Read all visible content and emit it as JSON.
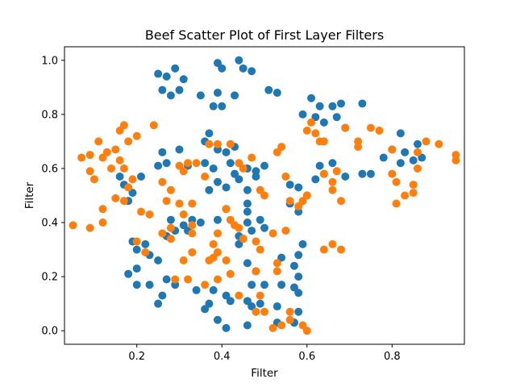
{
  "chart_data": {
    "type": "scatter",
    "title": "Beef Scatter Plot of First Layer Filters",
    "xlabel": "Filter",
    "ylabel": "Filter",
    "xlim": [
      0.03,
      0.97
    ],
    "ylim": [
      -0.05,
      1.05
    ],
    "x_ticks": [
      0.2,
      0.4,
      0.6,
      0.8
    ],
    "y_ticks": [
      0.0,
      0.2,
      0.4,
      0.6,
      0.8,
      1.0
    ],
    "x_tick_labels": [
      "0.2",
      "0.4",
      "0.6",
      "0.8"
    ],
    "y_tick_labels": [
      "0.0",
      "0.2",
      "0.4",
      "0.6",
      "0.8",
      "1.0"
    ],
    "grid": false,
    "series": [
      {
        "color": "#1f77b4",
        "points": [
          [
            0.25,
            0.95
          ],
          [
            0.27,
            0.94
          ],
          [
            0.29,
            0.97
          ],
          [
            0.31,
            0.93
          ],
          [
            0.26,
            0.89
          ],
          [
            0.28,
            0.87
          ],
          [
            0.3,
            0.89
          ],
          [
            0.39,
            0.99
          ],
          [
            0.4,
            0.97
          ],
          [
            0.44,
            1.0
          ],
          [
            0.45,
            0.97
          ],
          [
            0.47,
            0.96
          ],
          [
            0.35,
            0.87
          ],
          [
            0.38,
            0.83
          ],
          [
            0.39,
            0.88
          ],
          [
            0.4,
            0.83
          ],
          [
            0.43,
            0.87
          ],
          [
            0.51,
            0.89
          ],
          [
            0.53,
            0.88
          ],
          [
            0.61,
            0.86
          ],
          [
            0.63,
            0.83
          ],
          [
            0.66,
            0.83
          ],
          [
            0.68,
            0.84
          ],
          [
            0.73,
            0.84
          ],
          [
            0.59,
            0.8
          ],
          [
            0.62,
            0.79
          ],
          [
            0.64,
            0.77
          ],
          [
            0.67,
            0.79
          ],
          [
            0.69,
            0.75
          ],
          [
            0.37,
            0.73
          ],
          [
            0.36,
            0.7
          ],
          [
            0.39,
            0.67
          ],
          [
            0.41,
            0.66
          ],
          [
            0.43,
            0.68
          ],
          [
            0.26,
            0.66
          ],
          [
            0.3,
            0.67
          ],
          [
            0.25,
            0.61
          ],
          [
            0.27,
            0.62
          ],
          [
            0.32,
            0.61
          ],
          [
            0.36,
            0.62
          ],
          [
            0.38,
            0.6
          ],
          [
            0.42,
            0.62
          ],
          [
            0.43,
            0.58
          ],
          [
            0.46,
            0.6
          ],
          [
            0.48,
            0.59
          ],
          [
            0.5,
            0.61
          ],
          [
            0.37,
            0.52
          ],
          [
            0.39,
            0.55
          ],
          [
            0.41,
            0.53
          ],
          [
            0.46,
            0.52
          ],
          [
            0.48,
            0.57
          ],
          [
            0.44,
            0.56
          ],
          [
            0.16,
            0.57
          ],
          [
            0.17,
            0.54
          ],
          [
            0.19,
            0.51
          ],
          [
            0.18,
            0.48
          ],
          [
            0.21,
            0.57
          ],
          [
            0.56,
            0.54
          ],
          [
            0.58,
            0.53
          ],
          [
            0.62,
            0.56
          ],
          [
            0.63,
            0.61
          ],
          [
            0.66,
            0.62
          ],
          [
            0.64,
            0.58
          ],
          [
            0.69,
            0.57
          ],
          [
            0.73,
            0.58
          ],
          [
            0.75,
            0.58
          ],
          [
            0.78,
            0.64
          ],
          [
            0.8,
            0.67
          ],
          [
            0.82,
            0.62
          ],
          [
            0.83,
            0.66
          ],
          [
            0.85,
            0.63
          ],
          [
            0.86,
            0.69
          ],
          [
            0.87,
            0.64
          ],
          [
            0.82,
            0.73
          ],
          [
            0.56,
            0.47
          ],
          [
            0.58,
            0.44
          ],
          [
            0.6,
            0.5
          ],
          [
            0.28,
            0.41
          ],
          [
            0.29,
            0.37
          ],
          [
            0.27,
            0.35
          ],
          [
            0.31,
            0.39
          ],
          [
            0.33,
            0.41
          ],
          [
            0.35,
            0.4
          ],
          [
            0.32,
            0.37
          ],
          [
            0.39,
            0.41
          ],
          [
            0.41,
            0.45
          ],
          [
            0.44,
            0.35
          ],
          [
            0.46,
            0.4
          ],
          [
            0.47,
            0.37
          ],
          [
            0.46,
            0.44
          ],
          [
            0.46,
            0.47
          ],
          [
            0.49,
            0.41
          ],
          [
            0.5,
            0.38
          ],
          [
            0.44,
            0.32
          ],
          [
            0.45,
            0.34
          ],
          [
            0.19,
            0.33
          ],
          [
            0.2,
            0.3
          ],
          [
            0.22,
            0.32
          ],
          [
            0.23,
            0.28
          ],
          [
            0.25,
            0.26
          ],
          [
            0.2,
            0.23
          ],
          [
            0.18,
            0.21
          ],
          [
            0.2,
            0.17
          ],
          [
            0.23,
            0.17
          ],
          [
            0.27,
            0.19
          ],
          [
            0.29,
            0.17
          ],
          [
            0.26,
            0.13
          ],
          [
            0.25,
            0.1
          ],
          [
            0.34,
            0.15
          ],
          [
            0.37,
            0.1
          ],
          [
            0.36,
            0.08
          ],
          [
            0.38,
            0.15
          ],
          [
            0.41,
            0.13
          ],
          [
            0.42,
            0.11
          ],
          [
            0.39,
            0.04
          ],
          [
            0.41,
            0.01
          ],
          [
            0.46,
            0.11
          ],
          [
            0.47,
            0.09
          ],
          [
            0.47,
            0.17
          ],
          [
            0.46,
            0.25
          ],
          [
            0.48,
            0.22
          ],
          [
            0.5,
            0.17
          ],
          [
            0.49,
            0.1
          ],
          [
            0.46,
            0.02
          ],
          [
            0.53,
            0.09
          ],
          [
            0.53,
            0.03
          ],
          [
            0.54,
            0.17
          ],
          [
            0.54,
            0.27
          ],
          [
            0.57,
            0.24
          ],
          [
            0.58,
            0.28
          ],
          [
            0.57,
            0.16
          ],
          [
            0.58,
            0.07
          ],
          [
            0.57,
            0.03
          ],
          [
            0.58,
            0.14
          ],
          [
            0.58,
            0.2
          ],
          [
            0.59,
            0.32
          ],
          [
            0.57,
            0.03
          ]
        ]
      },
      {
        "color": "#ff7f0e",
        "points": [
          [
            0.05,
            0.39
          ],
          [
            0.09,
            0.38
          ],
          [
            0.12,
            0.4
          ],
          [
            0.12,
            0.45
          ],
          [
            0.07,
            0.64
          ],
          [
            0.09,
            0.65
          ],
          [
            0.1,
            0.56
          ],
          [
            0.09,
            0.59
          ],
          [
            0.12,
            0.64
          ],
          [
            0.14,
            0.6
          ],
          [
            0.11,
            0.7
          ],
          [
            0.13,
            0.66
          ],
          [
            0.15,
            0.67
          ],
          [
            0.16,
            0.74
          ],
          [
            0.17,
            0.76
          ],
          [
            0.18,
            0.7
          ],
          [
            0.2,
            0.72
          ],
          [
            0.16,
            0.63
          ],
          [
            0.17,
            0.6
          ],
          [
            0.18,
            0.53
          ],
          [
            0.19,
            0.56
          ],
          [
            0.15,
            0.49
          ],
          [
            0.17,
            0.48
          ],
          [
            0.21,
            0.44
          ],
          [
            0.23,
            0.43
          ],
          [
            0.24,
            0.76
          ],
          [
            0.26,
            0.55
          ],
          [
            0.28,
            0.52
          ],
          [
            0.27,
            0.48
          ],
          [
            0.3,
            0.61
          ],
          [
            0.31,
            0.59
          ],
          [
            0.32,
            0.62
          ],
          [
            0.34,
            0.62
          ],
          [
            0.36,
            0.57
          ],
          [
            0.37,
            0.69
          ],
          [
            0.39,
            0.69
          ],
          [
            0.42,
            0.69
          ],
          [
            0.44,
            0.62
          ],
          [
            0.45,
            0.6
          ],
          [
            0.47,
            0.64
          ],
          [
            0.49,
            0.52
          ],
          [
            0.5,
            0.5
          ],
          [
            0.53,
            0.66
          ],
          [
            0.54,
            0.68
          ],
          [
            0.55,
            0.57
          ],
          [
            0.56,
            0.48
          ],
          [
            0.58,
            0.46
          ],
          [
            0.59,
            0.48
          ],
          [
            0.6,
            0.5
          ],
          [
            0.6,
            0.74
          ],
          [
            0.61,
            0.77
          ],
          [
            0.62,
            0.73
          ],
          [
            0.63,
            0.7
          ],
          [
            0.64,
            0.7
          ],
          [
            0.64,
            0.58
          ],
          [
            0.66,
            0.55
          ],
          [
            0.66,
            0.52
          ],
          [
            0.67,
            0.59
          ],
          [
            0.68,
            0.48
          ],
          [
            0.69,
            0.75
          ],
          [
            0.72,
            0.68
          ],
          [
            0.72,
            0.7
          ],
          [
            0.75,
            0.75
          ],
          [
            0.77,
            0.74
          ],
          [
            0.8,
            0.67
          ],
          [
            0.8,
            0.58
          ],
          [
            0.81,
            0.55
          ],
          [
            0.81,
            0.47
          ],
          [
            0.83,
            0.5
          ],
          [
            0.85,
            0.51
          ],
          [
            0.85,
            0.54
          ],
          [
            0.86,
            0.6
          ],
          [
            0.86,
            0.66
          ],
          [
            0.88,
            0.7
          ],
          [
            0.91,
            0.69
          ],
          [
            0.95,
            0.65
          ],
          [
            0.95,
            0.63
          ],
          [
            0.2,
            0.33
          ],
          [
            0.22,
            0.29
          ],
          [
            0.26,
            0.36
          ],
          [
            0.28,
            0.34
          ],
          [
            0.28,
            0.38
          ],
          [
            0.3,
            0.47
          ],
          [
            0.31,
            0.43
          ],
          [
            0.33,
            0.47
          ],
          [
            0.33,
            0.39
          ],
          [
            0.33,
            0.36
          ],
          [
            0.31,
            0.26
          ],
          [
            0.33,
            0.29
          ],
          [
            0.37,
            0.26
          ],
          [
            0.39,
            0.36
          ],
          [
            0.38,
            0.32
          ],
          [
            0.39,
            0.29
          ],
          [
            0.41,
            0.45
          ],
          [
            0.42,
            0.41
          ],
          [
            0.43,
            0.39
          ],
          [
            0.44,
            0.38
          ],
          [
            0.45,
            0.34
          ],
          [
            0.48,
            0.33
          ],
          [
            0.49,
            0.3
          ],
          [
            0.48,
            0.22
          ],
          [
            0.52,
            0.36
          ],
          [
            0.53,
            0.25
          ],
          [
            0.53,
            0.22
          ],
          [
            0.55,
            0.37
          ],
          [
            0.29,
            0.19
          ],
          [
            0.32,
            0.19
          ],
          [
            0.36,
            0.17
          ],
          [
            0.39,
            0.19
          ],
          [
            0.42,
            0.21
          ],
          [
            0.44,
            0.13
          ],
          [
            0.48,
            0.07
          ],
          [
            0.49,
            0.13
          ],
          [
            0.5,
            0.07
          ],
          [
            0.52,
            0.01
          ],
          [
            0.54,
            0.02
          ],
          [
            0.56,
            0.07
          ],
          [
            0.56,
            0.04
          ],
          [
            0.59,
            0.02
          ],
          [
            0.6,
            0.0
          ],
          [
            0.64,
            0.3
          ],
          [
            0.66,
            0.32
          ],
          [
            0.68,
            0.3
          ],
          [
            0.38,
            0.27
          ],
          [
            0.41,
            0.26
          ]
        ]
      }
    ]
  }
}
